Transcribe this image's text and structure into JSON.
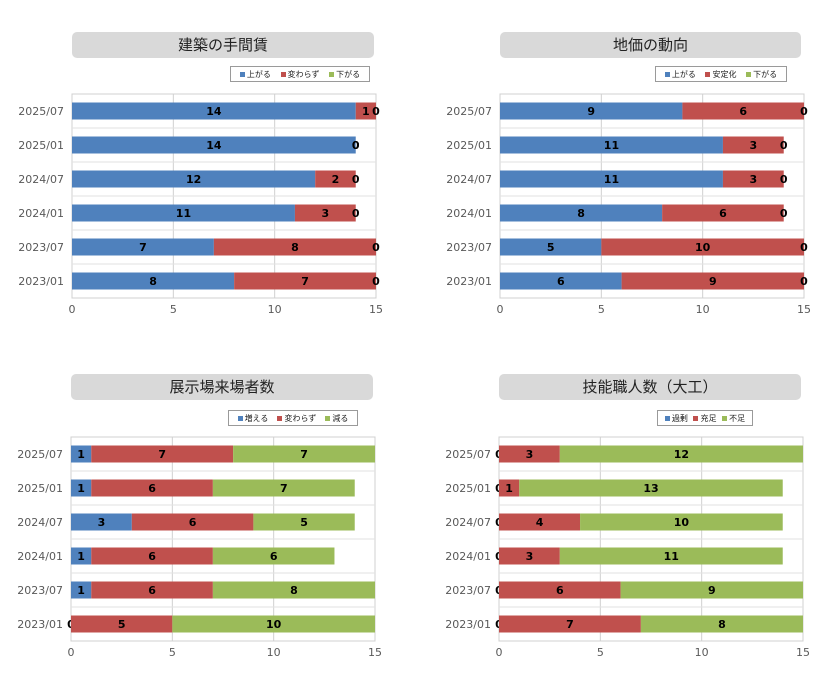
{
  "chart_data": [
    {
      "type": "bar",
      "stacked": true,
      "orientation": "horizontal",
      "title": "建築の手間賃",
      "categories": [
        "2025/07",
        "2025/01",
        "2024/07",
        "2024/01",
        "2023/07",
        "2023/01"
      ],
      "series": [
        {
          "name": "上がる",
          "color": "#4f81bd",
          "values": [
            14,
            14,
            12,
            11,
            7,
            8
          ]
        },
        {
          "name": "変わらず",
          "color": "#c0504d",
          "values": [
            1,
            0,
            2,
            3,
            8,
            7
          ]
        },
        {
          "name": "下がる",
          "color": "#9bbb59",
          "values": [
            0,
            0,
            0,
            0,
            0,
            0
          ]
        }
      ],
      "xlim": [
        0,
        15
      ],
      "xticks": [
        "0",
        "5",
        "10",
        "15"
      ],
      "grid": true,
      "legend": "top-right"
    },
    {
      "type": "bar",
      "stacked": true,
      "orientation": "horizontal",
      "title": "地価の動向",
      "categories": [
        "2025/07",
        "2025/01",
        "2024/07",
        "2024/01",
        "2023/07",
        "2023/01"
      ],
      "series": [
        {
          "name": "上がる",
          "color": "#4f81bd",
          "values": [
            9,
            11,
            11,
            8,
            5,
            6
          ]
        },
        {
          "name": "安定化",
          "color": "#c0504d",
          "values": [
            6,
            3,
            3,
            6,
            10,
            9
          ]
        },
        {
          "name": "下がる",
          "color": "#9bbb59",
          "values": [
            0,
            0,
            0,
            0,
            0,
            0
          ]
        }
      ],
      "xlim": [
        0,
        15
      ],
      "xticks": [
        "0",
        "5",
        "10",
        "15"
      ],
      "grid": true,
      "legend": "top-right"
    },
    {
      "type": "bar",
      "stacked": true,
      "orientation": "horizontal",
      "title": "展示場来場者数",
      "categories": [
        "2025/07",
        "2025/01",
        "2024/07",
        "2024/01",
        "2023/07",
        "2023/01"
      ],
      "series": [
        {
          "name": "増える",
          "color": "#4f81bd",
          "values": [
            1,
            1,
            3,
            1,
            1,
            0
          ]
        },
        {
          "name": "変わらず",
          "color": "#c0504d",
          "values": [
            7,
            6,
            6,
            6,
            6,
            5
          ]
        },
        {
          "name": "減る",
          "color": "#9bbb59",
          "values": [
            7,
            7,
            5,
            6,
            8,
            10
          ]
        }
      ],
      "xlim": [
        0,
        15
      ],
      "xticks": [
        "0",
        "5",
        "10",
        "15"
      ],
      "grid": true,
      "legend": "top-right"
    },
    {
      "type": "bar",
      "stacked": true,
      "orientation": "horizontal",
      "title": "技能職人数（大工）",
      "categories": [
        "2025/07",
        "2025/01",
        "2024/07",
        "2024/01",
        "2023/07",
        "2023/01"
      ],
      "series": [
        {
          "name": "過剰",
          "color": "#4f81bd",
          "values": [
            0,
            0,
            0,
            0,
            0,
            0
          ]
        },
        {
          "name": "充足",
          "color": "#c0504d",
          "values": [
            3,
            1,
            4,
            3,
            6,
            7
          ]
        },
        {
          "name": "不足",
          "color": "#9bbb59",
          "values": [
            12,
            13,
            10,
            11,
            9,
            8
          ]
        }
      ],
      "xlim": [
        0,
        15
      ],
      "xticks": [
        "0",
        "5",
        "10",
        "15"
      ],
      "grid": true,
      "legend": "top-right"
    }
  ]
}
